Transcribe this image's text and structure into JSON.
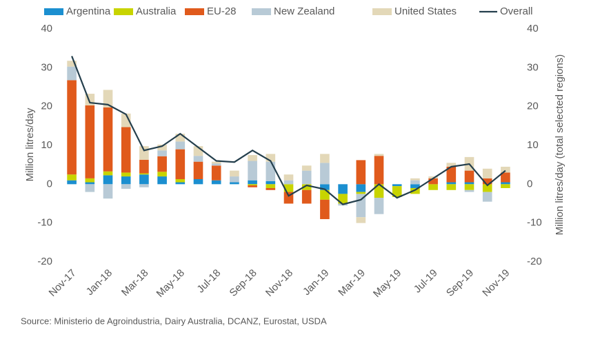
{
  "chart_data": {
    "type": "bar",
    "stacked": true,
    "ylabel": "Million litres/day",
    "y2label": "Million litres/day (total selected regions)",
    "source": "Source: Ministerio de Agroindustria, Dairy Australia, DCANZ, Eurostat, USDA",
    "categories": [
      "Nov-17",
      null,
      "Jan-18",
      null,
      "Mar-18",
      null,
      "May-18",
      null,
      "Jul-18",
      null,
      "Sep-18",
      null,
      "Nov-18",
      null,
      "Jan-19",
      null,
      "Mar-19",
      null,
      "May-19",
      null,
      "Jul-19",
      null,
      "Sep-19",
      null,
      "Nov-19"
    ],
    "series": [
      {
        "name": "Argentina",
        "color": "#1b8fd0",
        "values": [
          1,
          0.5,
          2.3,
          2,
          2.5,
          2,
          0.5,
          1.3,
          1,
          0.5,
          1,
          0.8,
          0,
          0,
          -1.5,
          -2.5,
          -2,
          0,
          -0.5,
          -1,
          0,
          0.5,
          0.5,
          0,
          0.5
        ]
      },
      {
        "name": "Australia",
        "color": "#c8d400",
        "values": [
          1.5,
          1,
          1,
          1,
          0.3,
          1.2,
          0.8,
          0,
          0,
          0,
          -0.3,
          -1,
          -2,
          -1.5,
          -2.5,
          -2.5,
          -0.5,
          -3.5,
          -2.8,
          -1.5,
          -1.5,
          -1.5,
          -1.5,
          -2,
          -1
        ]
      },
      {
        "name": "EU-28",
        "color": "#e05a1c",
        "values": [
          24.3,
          18.8,
          16.5,
          11.7,
          3.5,
          4,
          7.7,
          4.5,
          3.8,
          0,
          -0.5,
          -0.5,
          -3,
          -3.5,
          -5,
          0,
          6.2,
          7.3,
          0,
          0,
          1.5,
          4,
          3,
          1.5,
          2.5
        ]
      },
      {
        "name": "New Zealand",
        "color": "#b8cad6",
        "values": [
          3.5,
          -2,
          -3.7,
          -1.2,
          -0.8,
          1.5,
          2,
          1.5,
          0.5,
          1.5,
          5,
          5,
          1,
          3.5,
          5.5,
          -0.5,
          -6,
          -4.2,
          0,
          1,
          0,
          0,
          -0.5,
          -2.5,
          0
        ]
      },
      {
        "name": "United States",
        "color": "#e3d8b8",
        "values": [
          1.5,
          3,
          4.5,
          3.5,
          3.5,
          1.5,
          2,
          2.5,
          0.5,
          1.5,
          1.5,
          2,
          1.5,
          1.3,
          2.3,
          0,
          -1.5,
          0.5,
          0,
          0.5,
          0.5,
          1,
          3.5,
          2.5,
          1.5
        ]
      },
      {
        "name": "Overall",
        "type": "line",
        "axis": "y2",
        "color": "#243f4d",
        "values": [
          33,
          21,
          20.5,
          18,
          8.7,
          9.8,
          13,
          9.5,
          6,
          5.7,
          8.7,
          6,
          -3,
          -0.3,
          -1.3,
          -5.2,
          -4,
          0,
          -3.5,
          -1.5,
          1.5,
          4.5,
          5.2,
          -0.3,
          3.5
        ]
      }
    ],
    "ylim": [
      -20,
      40
    ],
    "yticks": [
      -20,
      -10,
      0,
      10,
      20,
      30,
      40
    ],
    "y2lim": [
      -20,
      40
    ],
    "y2ticks": [
      -20,
      -10,
      0,
      10,
      20,
      30,
      40
    ],
    "grid": false,
    "legend": "top"
  }
}
